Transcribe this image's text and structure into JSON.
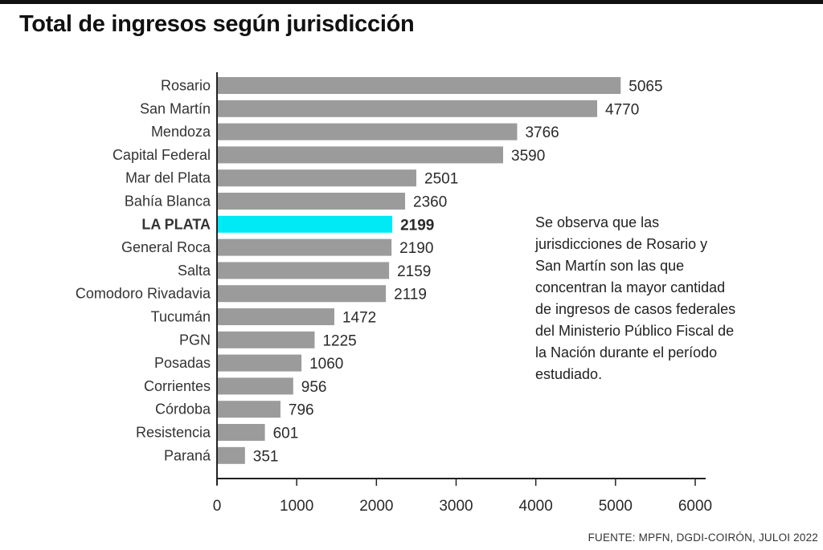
{
  "title": "Total de ingresos según jurisdicción",
  "annotation": "Se observa que las jurisdicciones de Rosario y San Martín son las que concentran la mayor cantidad de ingresos de casos federales del Ministerio Público Fiscal de la Nación durante el período estudiado.",
  "source": "FUENTE: MPFN, DGDI-COIRÓN, JULOI 2022",
  "colors": {
    "bar": "#9b9b9b",
    "highlight": "#00eaf5",
    "axis": "#222222"
  },
  "chart_data": {
    "type": "bar",
    "orientation": "horizontal",
    "title": "Total de ingresos según jurisdicción",
    "categories": [
      "Rosario",
      "San Martín",
      "Mendoza",
      "Capital Federal",
      "Mar del Plata",
      "Bahía Blanca",
      "LA PLATA",
      "General Roca",
      "Salta",
      "Comodoro Rivadavia",
      "Tucumán",
      "PGN",
      "Posadas",
      "Corrientes",
      "Córdoba",
      "Resistencia",
      "Paraná"
    ],
    "values": [
      5065,
      4770,
      3766,
      3590,
      2501,
      2360,
      2199,
      2190,
      2159,
      2119,
      1472,
      1225,
      1060,
      956,
      796,
      601,
      351
    ],
    "highlight": "LA PLATA",
    "xlim": [
      0,
      6000
    ],
    "xticks": [
      0,
      1000,
      2000,
      3000,
      4000,
      5000,
      6000
    ],
    "grid": false,
    "legend": "none"
  }
}
